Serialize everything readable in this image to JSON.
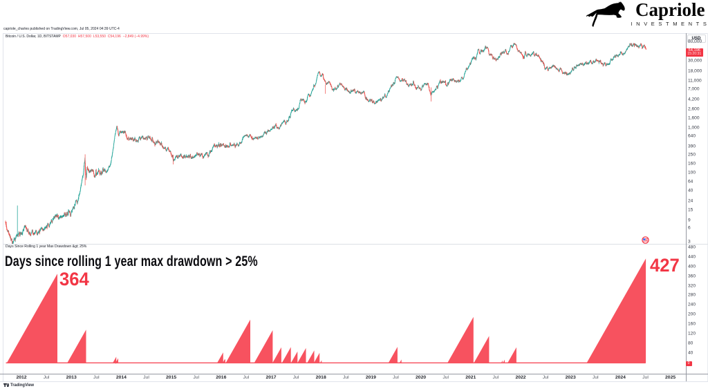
{
  "page": {
    "attribution": "capriole_charles published on TradingView.com, Jul 05, 2024 04:39 UTC-4"
  },
  "brand": {
    "name": "Capriole",
    "subtitle": "INVESTMENTS",
    "icon": "leaping-horse-icon",
    "color": "#000000"
  },
  "symbol_legend": {
    "title": "Bitcoin / U.S. Dollar, 1D, BITSTAMP",
    "open": "O57,030",
    "high": "H57,500",
    "low": "L53,550",
    "close": "C54,196",
    "change": "−2,849 (−4.99%)",
    "change_color": "#f23645"
  },
  "price_scale": {
    "currency_label": "USD",
    "ticks": [
      "80,000",
      "30,000",
      "18,000",
      "11,000",
      "7,000",
      "4,200",
      "2,600",
      "1,600",
      "1,000",
      "640",
      "390",
      "250",
      "160",
      "100",
      "64",
      "40",
      "24",
      "15",
      "9",
      "6",
      "3"
    ],
    "last_price_label": "54,196",
    "countdown": "15:20:31",
    "box_color": "#f23645"
  },
  "indicator": {
    "legend": "Days Since Rolling 1 year Max Drawdown &gt; 25%",
    "title": "Days since rolling 1 year max drawdown > 25%",
    "ticks": [
      "480",
      "440",
      "400",
      "360",
      "320",
      "280",
      "240",
      "200",
      "160",
      "120",
      "80",
      "40"
    ],
    "zero_label": "0",
    "fill_color": "#f7525f",
    "label_color": "#f23645",
    "annotations": [
      {
        "text": "364",
        "t": 2012.76,
        "days": 375
      },
      {
        "text": "427",
        "t": 2024.585,
        "days": 434
      }
    ]
  },
  "time_scale": {
    "labels": [
      {
        "text": "2012",
        "t": 2012,
        "major": true
      },
      {
        "text": "Jul",
        "t": 2012.5,
        "major": false
      },
      {
        "text": "2013",
        "t": 2013,
        "major": true
      },
      {
        "text": "Jul",
        "t": 2013.5,
        "major": false
      },
      {
        "text": "2014",
        "t": 2014,
        "major": true
      },
      {
        "text": "Jul",
        "t": 2014.5,
        "major": false
      },
      {
        "text": "2015",
        "t": 2015,
        "major": true
      },
      {
        "text": "Jul",
        "t": 2015.5,
        "major": false
      },
      {
        "text": "2016",
        "t": 2016,
        "major": true
      },
      {
        "text": "Jul",
        "t": 2016.5,
        "major": false
      },
      {
        "text": "2017",
        "t": 2017,
        "major": true
      },
      {
        "text": "Jul",
        "t": 2017.5,
        "major": false
      },
      {
        "text": "2018",
        "t": 2018,
        "major": true
      },
      {
        "text": "Jul",
        "t": 2018.5,
        "major": false
      },
      {
        "text": "2019",
        "t": 2019,
        "major": true
      },
      {
        "text": "Jul",
        "t": 2019.5,
        "major": false
      },
      {
        "text": "2020",
        "t": 2020,
        "major": true
      },
      {
        "text": "Jul",
        "t": 2020.5,
        "major": false
      },
      {
        "text": "2021",
        "t": 2021,
        "major": true
      },
      {
        "text": "Jul",
        "t": 2021.5,
        "major": false
      },
      {
        "text": "2022",
        "t": 2022,
        "major": true
      },
      {
        "text": "Jul",
        "t": 2022.5,
        "major": false
      },
      {
        "text": "2023",
        "t": 2023,
        "major": true
      },
      {
        "text": "Jul",
        "t": 2023.5,
        "major": false
      },
      {
        "text": "2024",
        "t": 2024,
        "major": true
      },
      {
        "text": "Jul",
        "t": 2024.5,
        "major": false
      },
      {
        "text": "2025",
        "t": 2025,
        "major": true
      }
    ]
  },
  "footer": {
    "logo_text": "TradingView"
  },
  "chart_data": [
    {
      "type": "candlestick",
      "name": "price",
      "symbol": "Bitcoin / U.S. Dollar",
      "scale": "log",
      "up_color": "#26a69a",
      "down_color": "#ef5350",
      "x_start": 2011.681,
      "x_end": 2024.512,
      "last_close": 54196,
      "anchors": [
        [
          2011.681,
          8.5
        ],
        [
          2011.73,
          5.5
        ],
        [
          2011.79,
          3.4
        ],
        [
          2011.86,
          3.1
        ],
        [
          2011.92,
          4.2
        ],
        [
          2012.0,
          5.2
        ],
        [
          2012.08,
          6.4
        ],
        [
          2012.15,
          5.0
        ],
        [
          2012.3,
          4.95
        ],
        [
          2012.42,
          5.4
        ],
        [
          2012.55,
          6.8
        ],
        [
          2012.63,
          9.2
        ],
        [
          2012.7,
          11.5
        ],
        [
          2012.78,
          10.2
        ],
        [
          2012.9,
          12.2
        ],
        [
          2013.0,
          13.4
        ],
        [
          2013.08,
          20
        ],
        [
          2013.17,
          33
        ],
        [
          2013.24,
          95
        ],
        [
          2013.272,
          235
        ],
        [
          2013.295,
          77
        ],
        [
          2013.32,
          122
        ],
        [
          2013.4,
          104
        ],
        [
          2013.5,
          95
        ],
        [
          2013.6,
          106
        ],
        [
          2013.72,
          126
        ],
        [
          2013.8,
          195
        ],
        [
          2013.85,
          420
        ],
        [
          2013.912,
          1160
        ],
        [
          2013.95,
          660
        ],
        [
          2014.0,
          770
        ],
        [
          2014.05,
          840
        ],
        [
          2014.1,
          690
        ],
        [
          2014.15,
          500
        ],
        [
          2014.2,
          565
        ],
        [
          2014.3,
          480
        ],
        [
          2014.42,
          625
        ],
        [
          2014.55,
          595
        ],
        [
          2014.7,
          490
        ],
        [
          2014.85,
          375
        ],
        [
          2014.95,
          335
        ],
        [
          2015.03,
          255
        ],
        [
          2015.045,
          200
        ],
        [
          2015.1,
          232
        ],
        [
          2015.2,
          242
        ],
        [
          2015.35,
          232
        ],
        [
          2015.5,
          252
        ],
        [
          2015.65,
          238
        ],
        [
          2015.8,
          305
        ],
        [
          2015.86,
          435
        ],
        [
          2015.95,
          420
        ],
        [
          2016.1,
          400
        ],
        [
          2016.25,
          425
        ],
        [
          2016.4,
          452
        ],
        [
          2016.47,
          690
        ],
        [
          2016.55,
          655
        ],
        [
          2016.7,
          615
        ],
        [
          2016.85,
          715
        ],
        [
          2017.0,
          985
        ],
        [
          2017.05,
          1110
        ],
        [
          2017.15,
          1010
        ],
        [
          2017.25,
          1230
        ],
        [
          2017.35,
          1480
        ],
        [
          2017.42,
          2550
        ],
        [
          2017.5,
          2450
        ],
        [
          2017.55,
          2750
        ],
        [
          2017.6,
          4150
        ],
        [
          2017.68,
          3850
        ],
        [
          2017.75,
          4850
        ],
        [
          2017.8,
          5700
        ],
        [
          2017.85,
          7150
        ],
        [
          2017.9,
          9800
        ],
        [
          2017.93,
          15800
        ],
        [
          2017.96,
          18900
        ],
        [
          2018.0,
          14100
        ],
        [
          2018.04,
          15400
        ],
        [
          2018.1,
          8600
        ],
        [
          2018.16,
          10600
        ],
        [
          2018.22,
          8300
        ],
        [
          2018.3,
          7050
        ],
        [
          2018.38,
          9250
        ],
        [
          2018.45,
          7500
        ],
        [
          2018.55,
          6450
        ],
        [
          2018.65,
          7050
        ],
        [
          2018.75,
          6500
        ],
        [
          2018.85,
          6400
        ],
        [
          2018.88,
          5600
        ],
        [
          2018.92,
          3950
        ],
        [
          2018.98,
          3800
        ],
        [
          2019.05,
          3550
        ],
        [
          2019.1,
          3850
        ],
        [
          2019.2,
          4050
        ],
        [
          2019.3,
          5350
        ],
        [
          2019.4,
          7950
        ],
        [
          2019.48,
          10900
        ],
        [
          2019.52,
          12800
        ],
        [
          2019.58,
          10500
        ],
        [
          2019.65,
          11800
        ],
        [
          2019.7,
          10100
        ],
        [
          2019.78,
          8400
        ],
        [
          2019.85,
          9400
        ],
        [
          2019.9,
          7400
        ],
        [
          2020.0,
          7200
        ],
        [
          2020.1,
          9800
        ],
        [
          2020.16,
          8800
        ],
        [
          2020.2,
          5300
        ],
        [
          2020.24,
          6500
        ],
        [
          2020.3,
          7000
        ],
        [
          2020.38,
          9500
        ],
        [
          2020.45,
          9250
        ],
        [
          2020.55,
          9150
        ],
        [
          2020.62,
          11500
        ],
        [
          2020.7,
          10600
        ],
        [
          2020.78,
          11000
        ],
        [
          2020.85,
          13600
        ],
        [
          2020.92,
          18600
        ],
        [
          2020.96,
          23200
        ],
        [
          2021.0,
          29200
        ],
        [
          2021.03,
          33500
        ],
        [
          2021.06,
          37500
        ],
        [
          2021.1,
          32000
        ],
        [
          2021.14,
          48500
        ],
        [
          2021.18,
          46500
        ],
        [
          2021.22,
          57500
        ],
        [
          2021.26,
          52500
        ],
        [
          2021.3,
          62500
        ],
        [
          2021.35,
          55000
        ],
        [
          2021.4,
          38000
        ],
        [
          2021.45,
          34500
        ],
        [
          2021.5,
          32500
        ],
        [
          2021.55,
          34000
        ],
        [
          2021.6,
          42500
        ],
        [
          2021.65,
          47500
        ],
        [
          2021.7,
          48500
        ],
        [
          2021.75,
          43500
        ],
        [
          2021.8,
          61500
        ],
        [
          2021.85,
          64000
        ],
        [
          2021.87,
          66500
        ],
        [
          2021.92,
          57000
        ],
        [
          2021.97,
          47500
        ],
        [
          2022.0,
          46500
        ],
        [
          2022.05,
          38500
        ],
        [
          2022.1,
          42500
        ],
        [
          2022.15,
          39500
        ],
        [
          2022.2,
          44500
        ],
        [
          2022.25,
          46500
        ],
        [
          2022.3,
          40500
        ],
        [
          2022.35,
          38500
        ],
        [
          2022.4,
          30000
        ],
        [
          2022.44,
          29500
        ],
        [
          2022.48,
          19500
        ],
        [
          2022.55,
          20500
        ],
        [
          2022.6,
          23500
        ],
        [
          2022.65,
          24000
        ],
        [
          2022.7,
          19800
        ],
        [
          2022.75,
          19200
        ],
        [
          2022.8,
          20600
        ],
        [
          2022.85,
          16600
        ],
        [
          2022.9,
          17000
        ],
        [
          2022.95,
          16600
        ],
        [
          2023.0,
          16800
        ],
        [
          2023.05,
          21200
        ],
        [
          2023.1,
          23200
        ],
        [
          2023.15,
          22200
        ],
        [
          2023.2,
          28200
        ],
        [
          2023.25,
          27600
        ],
        [
          2023.3,
          29200
        ],
        [
          2023.35,
          27200
        ],
        [
          2023.42,
          26600
        ],
        [
          2023.47,
          30600
        ],
        [
          2023.52,
          30300
        ],
        [
          2023.6,
          29200
        ],
        [
          2023.65,
          26100
        ],
        [
          2023.7,
          25900
        ],
        [
          2023.78,
          27200
        ],
        [
          2023.8,
          34200
        ],
        [
          2023.85,
          35200
        ],
        [
          2023.9,
          37600
        ],
        [
          2023.95,
          42200
        ],
        [
          2024.0,
          44200
        ],
        [
          2024.05,
          42600
        ],
        [
          2024.1,
          48200
        ],
        [
          2024.15,
          62200
        ],
        [
          2024.2,
          68200
        ],
        [
          2024.22,
          71000
        ],
        [
          2024.25,
          64800
        ],
        [
          2024.3,
          66200
        ],
        [
          2024.35,
          63800
        ],
        [
          2024.4,
          67600
        ],
        [
          2024.45,
          69200
        ],
        [
          2024.47,
          66200
        ],
        [
          2024.49,
          61200
        ],
        [
          2024.505,
          57200
        ],
        [
          2024.512,
          54196
        ]
      ],
      "special_wicks": [
        [
          2011.92,
          19.4,
          4.0,
          "up"
        ],
        [
          2013.276,
          262,
          54,
          "down"
        ],
        [
          2015.04,
          255,
          157,
          "down"
        ],
        [
          2018.09,
          9000,
          5700,
          "down"
        ],
        [
          2020.205,
          7900,
          3850,
          "down"
        ]
      ]
    },
    {
      "type": "area-sawtooth",
      "name": "Days Since Rolling 1 year Max Drawdown > 25%",
      "units": "days",
      "baseline_value": 0,
      "baseline_t_start": 2011.69,
      "baseline_t_end": 2024.503,
      "triangles": [
        [
          2012.713,
          364
        ],
        [
          2013.288,
          132
        ],
        [
          2013.893,
          20
        ],
        [
          2013.932,
          14
        ],
        [
          2016.034,
          38
        ],
        [
          2016.078,
          14
        ],
        [
          2016.577,
          174
        ],
        [
          2017.027,
          130
        ],
        [
          2017.2,
          59
        ],
        [
          2017.391,
          60
        ],
        [
          2017.523,
          42
        ],
        [
          2017.692,
          56
        ],
        [
          2017.859,
          46
        ],
        [
          2017.965,
          36
        ],
        [
          2018.008,
          6
        ],
        [
          2019.527,
          61
        ],
        [
          2019.607,
          9
        ],
        [
          2021.049,
          185
        ],
        [
          2021.362,
          106
        ],
        [
          2021.632,
          5
        ],
        [
          2021.674,
          8
        ],
        [
          2021.909,
          59
        ],
        [
          2024.502,
          427
        ]
      ]
    }
  ]
}
